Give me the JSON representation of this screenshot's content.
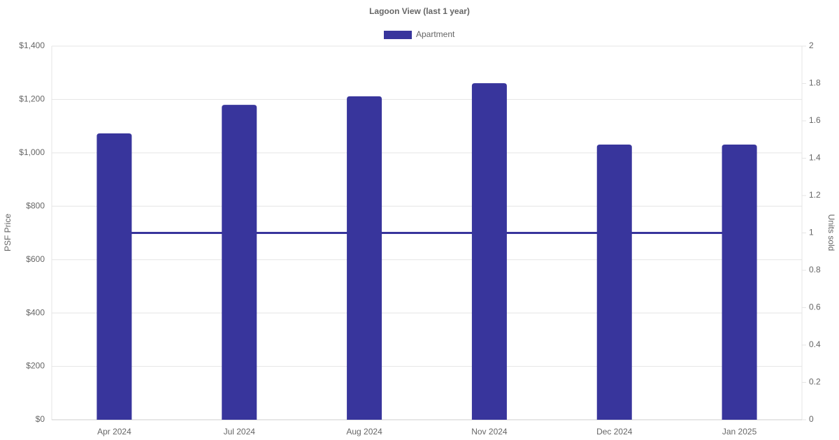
{
  "chart_data": {
    "type": "bar",
    "title": "Lagoon View (last 1 year)",
    "categories": [
      "Apr 2024",
      "Jul 2024",
      "Aug 2024",
      "Nov 2024",
      "Dec 2024",
      "Jan 2025"
    ],
    "series": [
      {
        "name": "Apartment",
        "type": "bar",
        "color": "#38359c",
        "values": [
          1073,
          1180,
          1212,
          1261,
          1031,
          1031
        ]
      },
      {
        "type": "line",
        "axis": "y2",
        "color": "#38359c",
        "values": [
          1,
          1,
          1,
          1,
          1,
          1
        ]
      }
    ],
    "ylabel": "PSF Price",
    "y2label": "Units sold",
    "ylim": [
      0,
      1400
    ],
    "yticks": [
      {
        "value": 0,
        "label": "$0"
      },
      {
        "value": 200,
        "label": "$200"
      },
      {
        "value": 400,
        "label": "$400"
      },
      {
        "value": 600,
        "label": "$600"
      },
      {
        "value": 800,
        "label": "$800"
      },
      {
        "value": 1000,
        "label": "$1,000"
      },
      {
        "value": 1200,
        "label": "$1,200"
      },
      {
        "value": 1400,
        "label": "$1,400"
      }
    ],
    "y2lim": [
      0,
      2
    ],
    "y2ticks": [
      0,
      0.2,
      0.4,
      0.6,
      0.8,
      1,
      1.2,
      1.4,
      1.6,
      1.8,
      2
    ],
    "grid": true,
    "legend": "top"
  }
}
